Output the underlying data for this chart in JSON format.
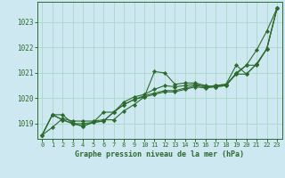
{
  "title": "Graphe pression niveau de la mer (hPa)",
  "bg_color": "#cde8f0",
  "grid_color": "#a8d8c8",
  "line_color": "#2d6a2d",
  "xlim": [
    -0.5,
    23.5
  ],
  "ylim": [
    1018.4,
    1023.8
  ],
  "yticks": [
    1019,
    1020,
    1021,
    1022,
    1023
  ],
  "xticks": [
    0,
    1,
    2,
    3,
    4,
    5,
    6,
    7,
    8,
    9,
    10,
    11,
    12,
    13,
    14,
    15,
    16,
    17,
    18,
    19,
    20,
    21,
    22,
    23
  ],
  "series": [
    [
      1018.55,
      1018.85,
      1019.2,
      1019.1,
      1019.1,
      1019.1,
      1019.15,
      1019.15,
      1019.5,
      1019.75,
      1020.05,
      1021.05,
      1021.0,
      1020.55,
      1020.6,
      1020.6,
      1020.5,
      1020.45,
      1020.5,
      1021.0,
      1021.3,
      1021.9,
      1022.65,
      1023.55
    ],
    [
      1018.55,
      1019.35,
      1019.35,
      1019.0,
      1019.0,
      1019.05,
      1019.1,
      1019.45,
      1019.85,
      1020.05,
      1020.15,
      1020.35,
      1020.5,
      1020.45,
      1020.5,
      1020.55,
      1020.45,
      1020.5,
      1020.55,
      1021.3,
      1020.95,
      1021.35,
      1021.95,
      1023.55
    ],
    [
      1018.55,
      1019.35,
      1019.15,
      1019.0,
      1018.9,
      1019.05,
      1019.45,
      1019.45,
      1019.75,
      1019.95,
      1020.05,
      1020.15,
      1020.25,
      1020.25,
      1020.35,
      1020.45,
      1020.4,
      1020.45,
      1020.5,
      1020.95,
      1021.3,
      1021.3,
      1021.95,
      1023.55
    ],
    [
      1018.55,
      1019.35,
      1019.15,
      1019.0,
      1018.9,
      1019.05,
      1019.1,
      1019.45,
      1019.75,
      1019.95,
      1020.1,
      1020.2,
      1020.3,
      1020.3,
      1020.4,
      1020.5,
      1020.45,
      1020.5,
      1020.55,
      1020.95,
      1020.95,
      1021.35,
      1021.95,
      1023.55
    ]
  ]
}
